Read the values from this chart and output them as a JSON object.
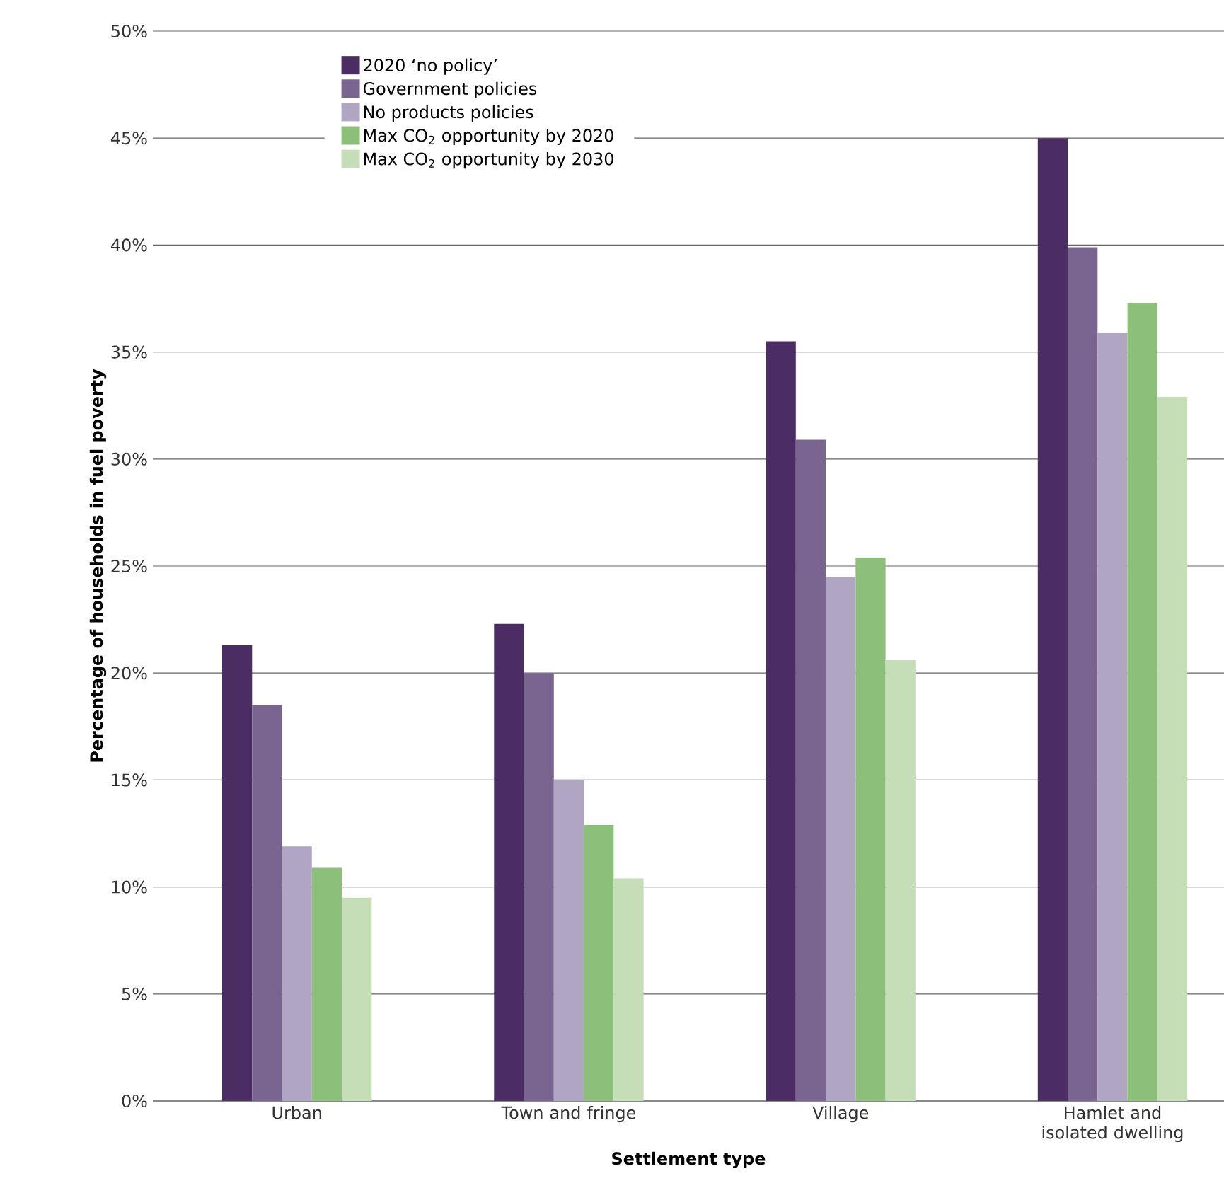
{
  "chart_data": {
    "type": "bar",
    "xlabel": "Settlement type",
    "ylabel": "Percentage of households in fuel poverty",
    "categories": [
      "Urban",
      "Town and fringe",
      "Village",
      "Hamlet and isolated dwelling"
    ],
    "series": [
      {
        "name": "2020 ‘no policy’",
        "color": "#4b2d63",
        "values": [
          21.3,
          22.3,
          35.5,
          45.0
        ]
      },
      {
        "name": "Government policies",
        "color": "#7a6590",
        "values": [
          18.5,
          20.0,
          30.9,
          39.9
        ]
      },
      {
        "name": "No products policies",
        "color": "#b1a5c4",
        "values": [
          11.9,
          15.0,
          24.5,
          35.9
        ]
      },
      {
        "name": "Max CO$_{2}$ opportunity by 2020",
        "color": "#8cc07a",
        "values": [
          10.9,
          12.9,
          25.4,
          37.3
        ]
      },
      {
        "name": "Max CO$_{2}$ opportunity by 2030",
        "color": "#c5deb8",
        "values": [
          9.5,
          10.4,
          20.6,
          32.9
        ]
      }
    ],
    "ylim": [
      0,
      50
    ],
    "yticks": [
      {
        "value": 0,
        "label": "0%"
      },
      {
        "value": 5,
        "label": "5%"
      },
      {
        "value": 10,
        "label": "10%"
      },
      {
        "value": 15,
        "label": "15%"
      },
      {
        "value": 20,
        "label": "20%"
      },
      {
        "value": 25,
        "label": "25%"
      },
      {
        "value": 30,
        "label": "30%"
      },
      {
        "value": 35,
        "label": "35%"
      },
      {
        "value": 40,
        "label": "40%"
      },
      {
        "value": 45,
        "label": "45%"
      },
      {
        "value": 50,
        "label": "50%"
      }
    ],
    "grid": "y",
    "legend": "top left"
  }
}
